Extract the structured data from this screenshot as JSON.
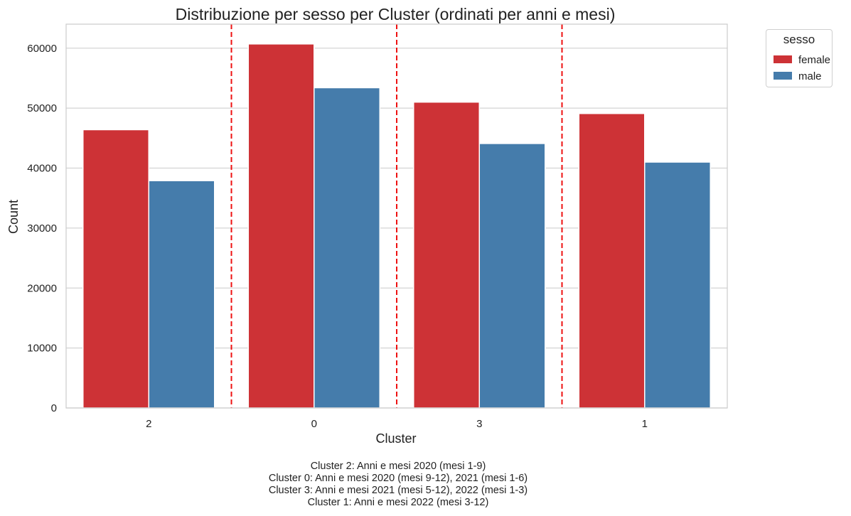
{
  "chart_data": {
    "type": "bar",
    "title": "Distribuzione per sesso per Cluster (ordinati per anni e mesi)",
    "xlabel": "Cluster",
    "ylabel": "Count",
    "categories": [
      "2",
      "0",
      "3",
      "1"
    ],
    "series": [
      {
        "name": "female",
        "color": "#cd3236",
        "values": [
          46400,
          60700,
          51000,
          49100
        ]
      },
      {
        "name": "male",
        "color": "#457cab",
        "values": [
          37900,
          53400,
          44100,
          41000
        ]
      }
    ],
    "ylim": [
      0,
      64000
    ],
    "yticks": [
      0,
      10000,
      20000,
      30000,
      40000,
      50000,
      60000
    ],
    "grid": true,
    "legend": {
      "title": "sesso",
      "placement": "outside-top-right"
    },
    "separators": {
      "style": "dashed",
      "color": "#ee1111",
      "between_categories": true
    },
    "notes": [
      "Cluster 2: Anni e mesi 2020 (mesi 1-9)",
      "Cluster 0: Anni e mesi 2020 (mesi 9-12), 2021 (mesi 1-6)",
      "Cluster 3: Anni e mesi 2021 (mesi 5-12), 2022 (mesi 1-3)",
      "Cluster 1: Anni e mesi 2022 (mesi 3-12)"
    ]
  }
}
